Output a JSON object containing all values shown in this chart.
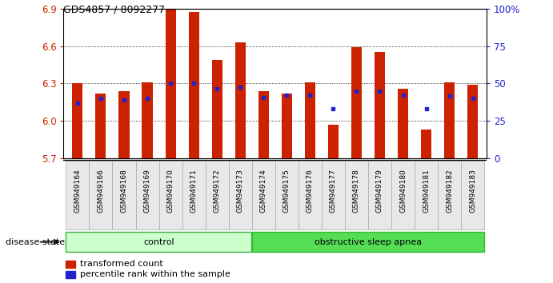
{
  "title": "GDS4857 / 8092277",
  "samples": [
    "GSM949164",
    "GSM949166",
    "GSM949168",
    "GSM949169",
    "GSM949170",
    "GSM949171",
    "GSM949172",
    "GSM949173",
    "GSM949174",
    "GSM949175",
    "GSM949176",
    "GSM949177",
    "GSM949178",
    "GSM949179",
    "GSM949180",
    "GSM949181",
    "GSM949182",
    "GSM949183"
  ],
  "bar_values": [
    6.3,
    6.22,
    6.24,
    6.31,
    6.9,
    6.87,
    6.49,
    6.63,
    6.24,
    6.22,
    6.31,
    5.97,
    6.59,
    6.55,
    6.26,
    5.93,
    6.31,
    6.29
  ],
  "percentile_values": [
    6.14,
    6.18,
    6.17,
    6.18,
    6.3,
    6.3,
    6.26,
    6.27,
    6.19,
    6.21,
    6.21,
    6.1,
    6.24,
    6.24,
    6.21,
    6.1,
    6.2,
    6.18
  ],
  "ymin": 5.7,
  "ymax": 6.9,
  "yticks": [
    5.7,
    6.0,
    6.3,
    6.6,
    6.9
  ],
  "bar_color": "#cc2200",
  "percentile_color": "#2222cc",
  "control_count": 8,
  "control_label": "control",
  "disease_label": "obstructive sleep apnea",
  "control_color": "#ccffcc",
  "disease_color": "#55dd55",
  "legend_bar_label": "transformed count",
  "legend_dot_label": "percentile rank within the sample",
  "disease_state_label": "disease state",
  "right_ytick_pcts": [
    0,
    25,
    50,
    75,
    100
  ],
  "right_ytick_labels": [
    "0",
    "25",
    "50",
    "75",
    "100%"
  ]
}
